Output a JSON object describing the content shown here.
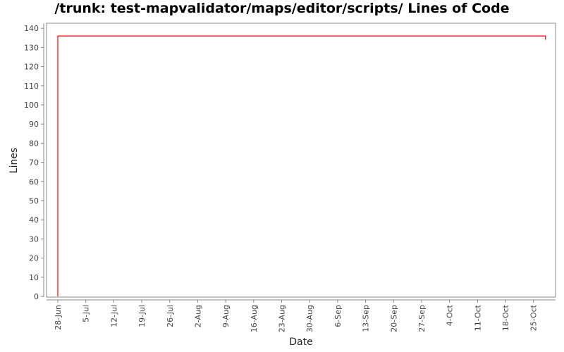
{
  "chart_data": {
    "type": "line",
    "title": "/trunk: test-mapvalidator/maps/editor/scripts/ Lines of Code",
    "xlabel": "Date",
    "ylabel": "Lines",
    "ylim": [
      0,
      140
    ],
    "yticks": [
      0,
      10,
      20,
      30,
      40,
      50,
      60,
      70,
      80,
      90,
      100,
      110,
      120,
      130,
      140
    ],
    "xticks": [
      "28-Jun",
      "5-Jul",
      "12-Jul",
      "19-Jul",
      "26-Jul",
      "2-Aug",
      "9-Aug",
      "16-Aug",
      "23-Aug",
      "30-Aug",
      "6-Sep",
      "13-Sep",
      "20-Sep",
      "27-Sep",
      "4-Oct",
      "11-Oct",
      "18-Oct",
      "25-Oct"
    ],
    "grid": false,
    "series": [
      {
        "color": "#ff0000",
        "points": [
          {
            "x": "28-Jun",
            "y": 0
          },
          {
            "x": "28-Jun",
            "y": 136
          },
          {
            "x": "28-Oct",
            "y": 136
          },
          {
            "x": "28-Oct",
            "y": 134
          }
        ]
      }
    ]
  }
}
